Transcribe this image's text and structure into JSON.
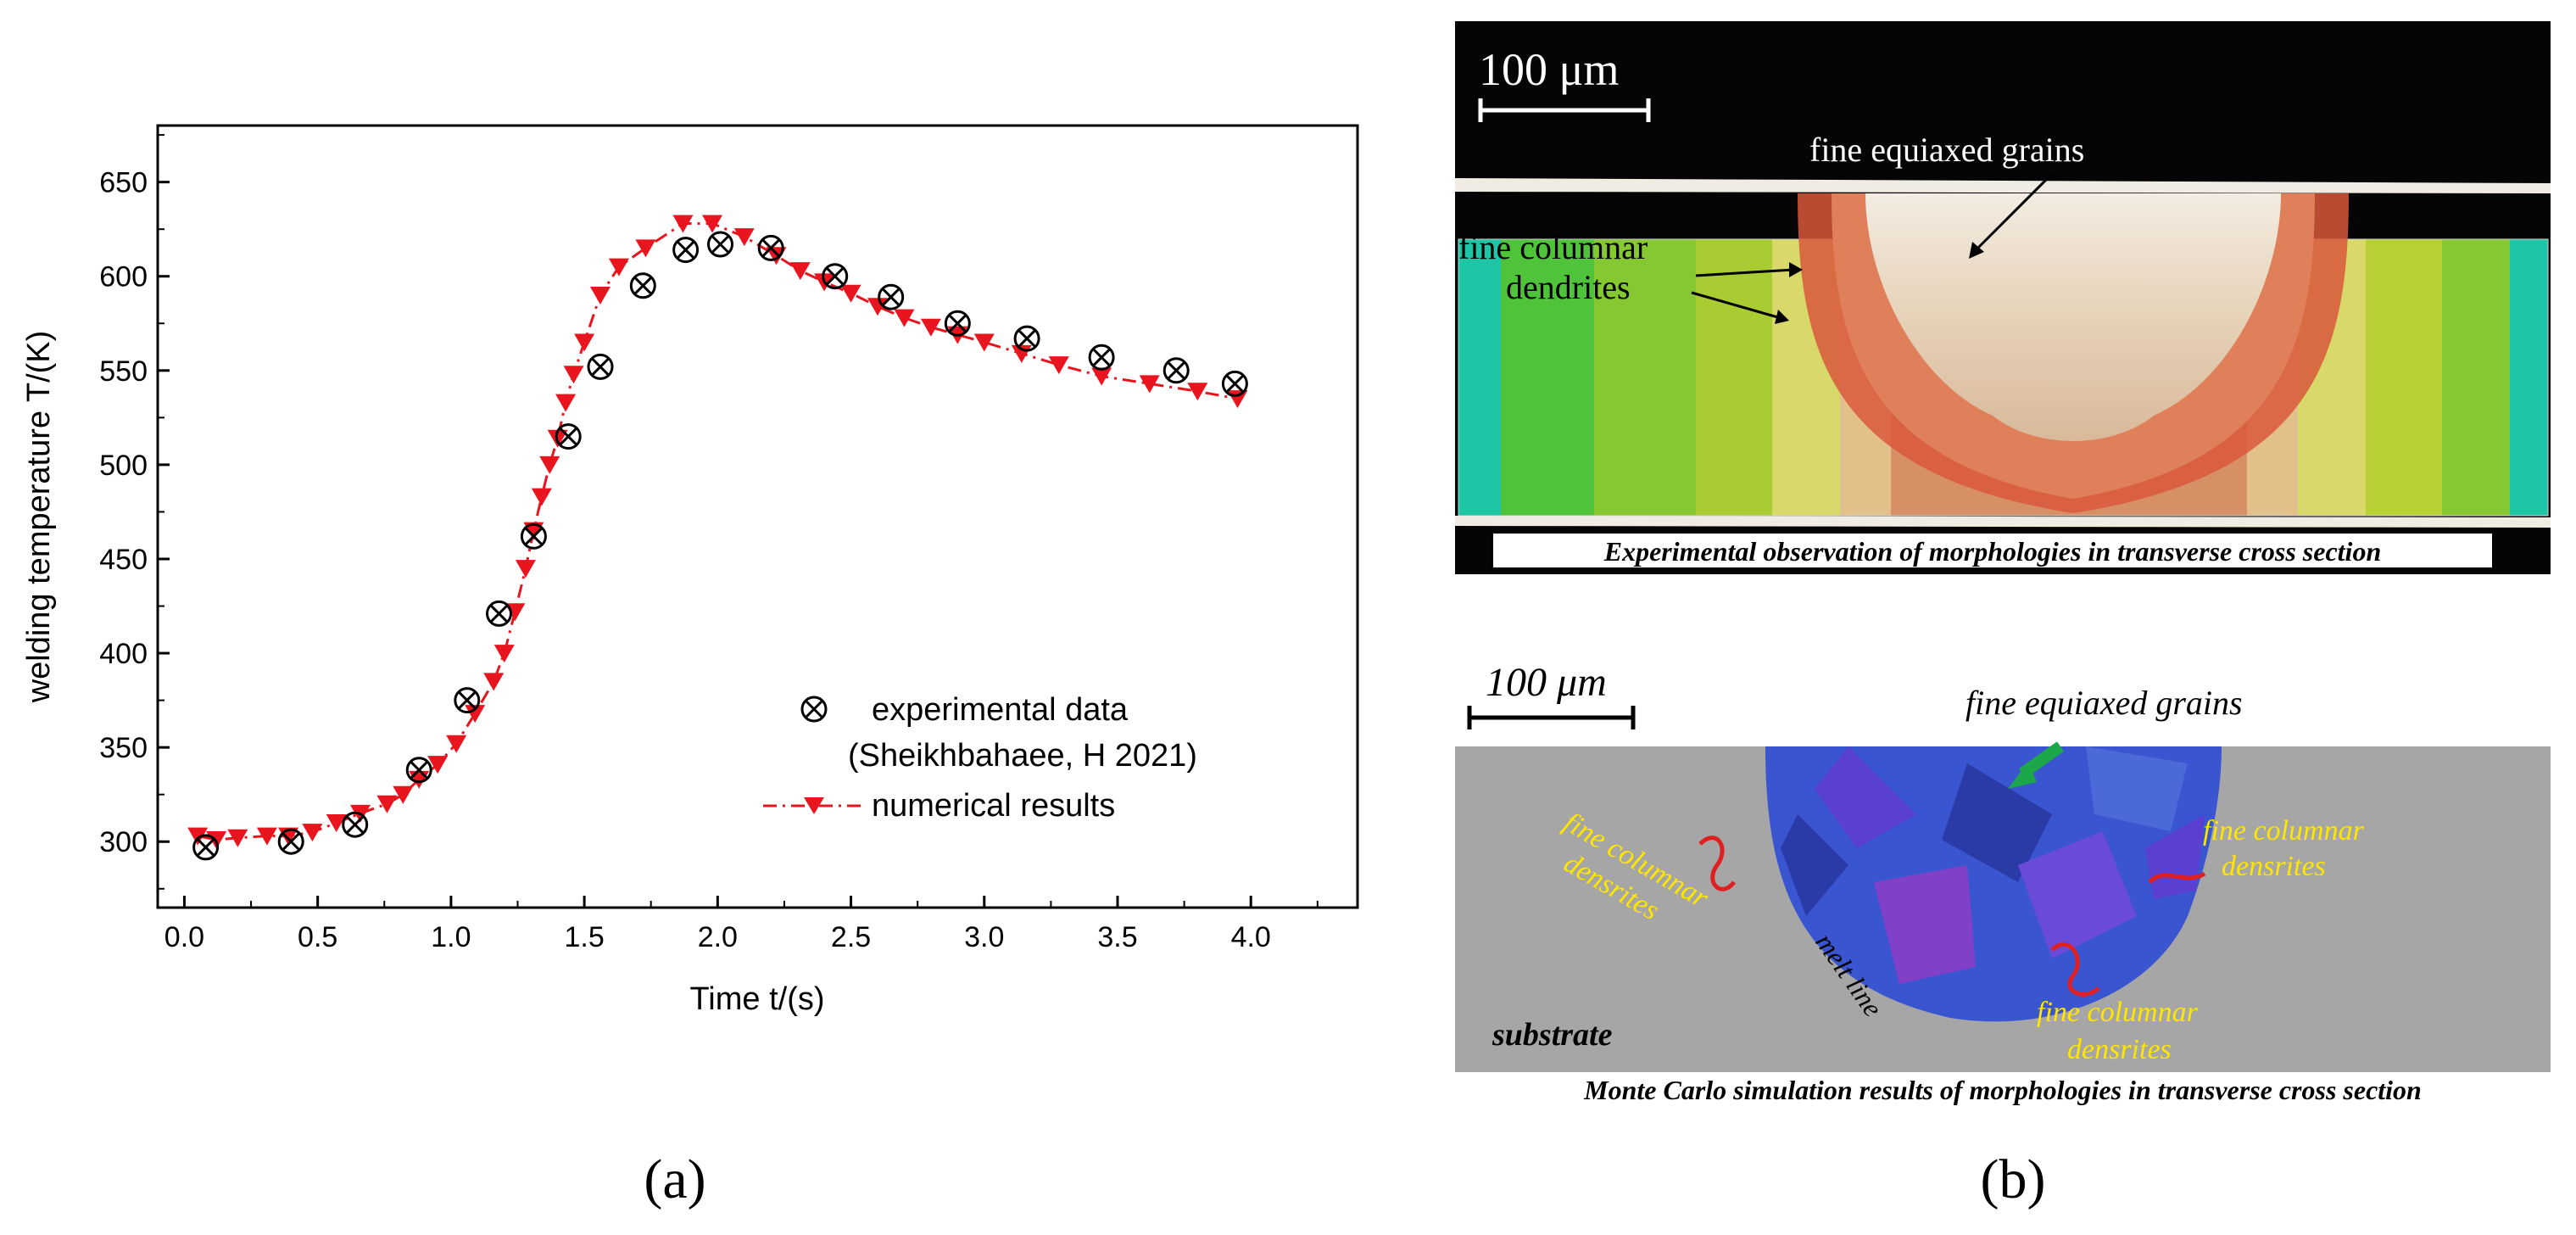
{
  "panel_a": {
    "label": "(a)",
    "chart_data": {
      "type": "scatter",
      "xlabel": "Time t/(s)",
      "ylabel": "welding temperature T/(K)",
      "xlim": [
        -0.1,
        4.4
      ],
      "ylim": [
        265,
        680
      ],
      "xticks": [
        "0.0",
        "0.5",
        "1.0",
        "1.5",
        "2.0",
        "2.5",
        "3.0",
        "3.5",
        "4.0"
      ],
      "yticks": [
        "300",
        "350",
        "400",
        "450",
        "500",
        "550",
        "600",
        "650"
      ],
      "series": [
        {
          "name": "experimental data",
          "name_line2": "(Sheikhbahaee, H  2021)",
          "marker": "circle-x",
          "color": "#000000",
          "x": [
            0.08,
            0.4,
            0.64,
            0.88,
            1.06,
            1.18,
            1.31,
            1.44,
            1.56,
            1.72,
            1.88,
            2.01,
            2.2,
            2.44,
            2.65,
            2.9,
            3.16,
            3.44,
            3.72,
            3.94
          ],
          "y": [
            297,
            300,
            309,
            338,
            375,
            421,
            462,
            515,
            552,
            595,
            614,
            617,
            615,
            600,
            589,
            575,
            567,
            557,
            550,
            543
          ]
        },
        {
          "name": "numerical results",
          "marker": "triangle-down",
          "line": "dash-dot",
          "color": "#e8141e",
          "x": [
            0.05,
            0.12,
            0.2,
            0.31,
            0.39,
            0.48,
            0.57,
            0.66,
            0.76,
            0.82,
            0.88,
            0.95,
            1.02,
            1.09,
            1.16,
            1.2,
            1.24,
            1.28,
            1.31,
            1.34,
            1.37,
            1.4,
            1.43,
            1.46,
            1.5,
            1.56,
            1.63,
            1.73,
            1.87,
            1.98,
            2.1,
            2.22,
            2.31,
            2.4,
            2.5,
            2.6,
            2.7,
            2.8,
            2.9,
            3.0,
            3.14,
            3.28,
            3.44,
            3.62,
            3.8,
            3.95
          ],
          "y": [
            303,
            301,
            302,
            303,
            303,
            305,
            310,
            315,
            320,
            325,
            333,
            341,
            352,
            368,
            385,
            400,
            422,
            445,
            465,
            483,
            500,
            514,
            533,
            548,
            565,
            590,
            605,
            615,
            628,
            628,
            621,
            611,
            603,
            597,
            591,
            584,
            578,
            573,
            569,
            565,
            559,
            553,
            547,
            543,
            539,
            535
          ]
        }
      ]
    }
  },
  "panel_b": {
    "label": "(b)",
    "top": {
      "scale_bar": "100 μm",
      "label_equiaxed": "fine equiaxed grains",
      "label_columnar_line1": "fine columnar",
      "label_columnar_line2": "dendrites",
      "caption": "Experimental observation of morphologies in transverse cross section",
      "colors": [
        "#1fc6a6",
        "#4fc43a",
        "#86c832",
        "#b9d035",
        "#d9d860",
        "#e2b87a",
        "#d57d4a",
        "#d9583b"
      ]
    },
    "bottom": {
      "scale_bar": "100 μm",
      "label_equiaxed": "fine equiaxed grains",
      "label_columnar_left_line1": "fine columnar",
      "label_columnar_left_line2": "densrites",
      "label_columnar_right_line1": "fine columnar",
      "label_columnar_right_line2": "densrites",
      "label_columnar_bottom_line1": "fine columnar",
      "label_columnar_bottom_line2": "densrites",
      "label_melt_line": "melt line",
      "label_substrate": "substrate",
      "caption": "Monte Carlo simulation results of morphologies in transverse cross section",
      "colors": [
        "#a6a6a6",
        "#3a55d0",
        "#5a3fd0",
        "#2a3ba8",
        "#6a4bd8",
        "#4a6ad8",
        "#8040c8"
      ]
    }
  }
}
